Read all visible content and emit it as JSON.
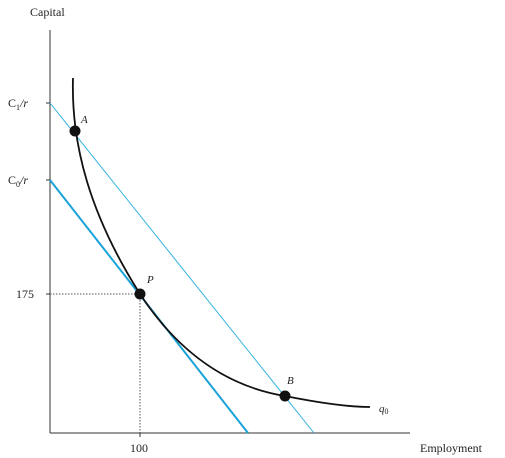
{
  "axes": {
    "y_label": "Capital",
    "x_label": "Employment"
  },
  "ticks": {
    "c1r": {
      "main": "C",
      "sub": "1",
      "tail": "/r"
    },
    "c0r": {
      "main": "C",
      "sub": "0",
      "tail": "/r"
    },
    "k175": "175",
    "l100": "100"
  },
  "points": {
    "A": "A",
    "P": "P",
    "B": "B"
  },
  "isoquant": {
    "label_main": "q",
    "label_sub": "0"
  },
  "colors": {
    "axis": "#333333",
    "isoquant": "#111111",
    "isocost_c0": "#1aa3d9",
    "isocost_c1": "#33b0e0",
    "point": "#111111",
    "guide": "#555555"
  }
}
